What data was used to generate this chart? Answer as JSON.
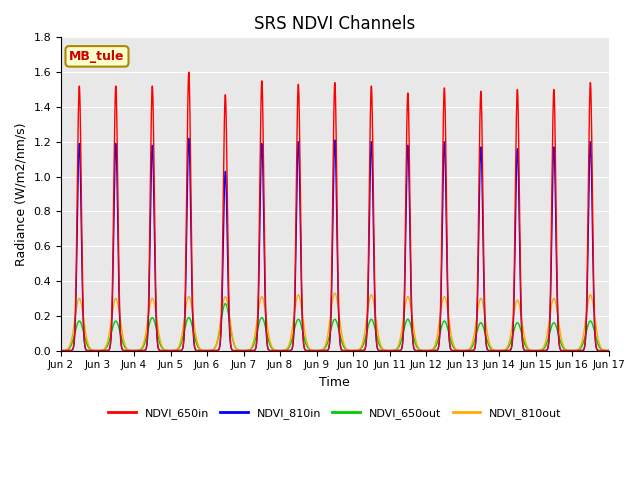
{
  "title": "SRS NDVI Channels",
  "xlabel": "Time",
  "ylabel": "Radiance (W/m2/nm/s)",
  "annotation": "MB_tule",
  "ylim": [
    0.0,
    1.8
  ],
  "yticks": [
    0.0,
    0.2,
    0.4,
    0.6,
    0.8,
    1.0,
    1.2,
    1.4,
    1.6,
    1.8
  ],
  "xtick_labels": [
    "Jun 2",
    "Jun 3",
    "Jun 4",
    "Jun 5",
    "Jun 6",
    "Jun 7",
    "Jun 8",
    "Jun 9",
    "Jun 10",
    "Jun 11",
    "Jun 12",
    "Jun 13",
    "Jun 14",
    "Jun 15",
    "Jun 16",
    "Jun 17"
  ],
  "colors": {
    "NDVI_650in": "#ff0000",
    "NDVI_810in": "#0000ff",
    "NDVI_650out": "#00cc00",
    "NDVI_810out": "#ffaa00"
  },
  "num_days": 15,
  "background_color": "#e8e8e8",
  "annotation_bg": "#ffffcc",
  "annotation_border": "#aa8800",
  "annotation_text_color": "#cc0000",
  "peak_650in": [
    1.52,
    1.52,
    1.52,
    1.6,
    1.47,
    1.55,
    1.53,
    1.54,
    1.52,
    1.48,
    1.51,
    1.49,
    1.5,
    1.5,
    1.54
  ],
  "peak_810in": [
    1.19,
    1.19,
    1.18,
    1.22,
    1.03,
    1.19,
    1.2,
    1.21,
    1.2,
    1.18,
    1.2,
    1.17,
    1.16,
    1.17,
    1.2
  ],
  "peak_650out": [
    0.17,
    0.17,
    0.19,
    0.19,
    0.27,
    0.19,
    0.18,
    0.18,
    0.18,
    0.18,
    0.17,
    0.16,
    0.16,
    0.16,
    0.17
  ],
  "peak_810out": [
    0.3,
    0.3,
    0.3,
    0.31,
    0.31,
    0.31,
    0.32,
    0.33,
    0.32,
    0.31,
    0.31,
    0.3,
    0.29,
    0.3,
    0.32
  ],
  "sigma_in": 0.055,
  "sigma_out": 0.12,
  "title_fontsize": 12,
  "figsize": [
    6.4,
    4.8
  ],
  "dpi": 100
}
